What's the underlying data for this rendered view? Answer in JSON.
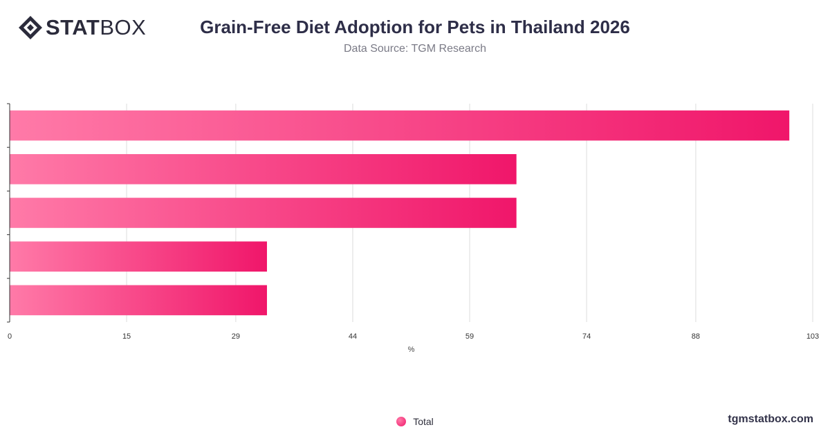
{
  "brand": {
    "logo_bold": "STAT",
    "logo_light": "BOX",
    "watermark": "tgmstatbox.com"
  },
  "header": {
    "title": "Grain-Free Diet Adoption for Pets in Thailand 2026",
    "subtitle": "Data Source: TGM Research"
  },
  "colors": {
    "bar_start": "#ff7aa8",
    "bar_end": "#f0166a",
    "grid": "#dcdcdc",
    "axis": "#333333"
  },
  "chart_data": {
    "type": "bar",
    "orientation": "horizontal",
    "categories": [
      "",
      "",
      "",
      "",
      ""
    ],
    "series": [
      {
        "name": "Total",
        "values": [
          100,
          65,
          65,
          33,
          33
        ]
      }
    ],
    "xlabel": "%",
    "ylabel": "",
    "xlim": [
      0,
      103
    ],
    "xticks": [
      0,
      15,
      29,
      44,
      59,
      74,
      88,
      103
    ],
    "grid": true,
    "legend_position": "bottom-center"
  },
  "legend": {
    "items": [
      {
        "label": "Total"
      }
    ]
  }
}
